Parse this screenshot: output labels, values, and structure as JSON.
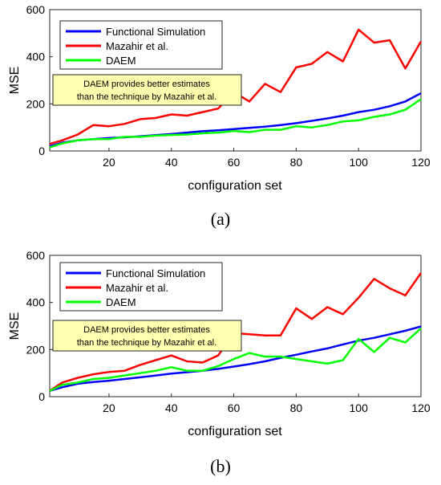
{
  "figure": {
    "panels": [
      "(a)",
      "(b)"
    ]
  },
  "chart_data": [
    {
      "type": "line",
      "caption": "(a)",
      "xlabel": "configuration set",
      "ylabel": "MSE",
      "xlim": [
        1,
        120
      ],
      "ylim": [
        0,
        600
      ],
      "xticks": [
        20,
        40,
        60,
        80,
        100,
        120
      ],
      "yticks": [
        0,
        200,
        400,
        600
      ],
      "grid": false,
      "legend_position": "top-left",
      "annotation": [
        "DAEM provides better estimates",
        "than the technique by Mazahir et al."
      ],
      "x": [
        1,
        5,
        10,
        15,
        20,
        25,
        30,
        35,
        40,
        45,
        50,
        55,
        60,
        65,
        70,
        75,
        80,
        85,
        90,
        95,
        100,
        105,
        110,
        115,
        120
      ],
      "series": [
        {
          "name": "Functional Simulation",
          "color": "#0000ff",
          "values": [
            20,
            35,
            45,
            50,
            55,
            58,
            62,
            67,
            72,
            78,
            84,
            88,
            93,
            98,
            103,
            110,
            118,
            128,
            138,
            150,
            165,
            175,
            190,
            210,
            245
          ]
        },
        {
          "name": "Mazahir et al.",
          "color": "#ff0000",
          "values": [
            30,
            45,
            70,
            110,
            105,
            115,
            135,
            140,
            155,
            150,
            165,
            180,
            250,
            210,
            285,
            250,
            355,
            370,
            420,
            380,
            515,
            460,
            470,
            350,
            465
          ]
        },
        {
          "name": "DAEM",
          "color": "#00ff00",
          "values": [
            15,
            32,
            45,
            50,
            50,
            60,
            60,
            65,
            68,
            70,
            75,
            78,
            85,
            80,
            90,
            90,
            105,
            100,
            110,
            125,
            130,
            145,
            155,
            175,
            220
          ]
        }
      ]
    },
    {
      "type": "line",
      "caption": "(b)",
      "xlabel": "configuration set",
      "ylabel": "MSE",
      "xlim": [
        1,
        120
      ],
      "ylim": [
        0,
        600
      ],
      "xticks": [
        20,
        40,
        60,
        80,
        100,
        120
      ],
      "yticks": [
        0,
        200,
        400,
        600
      ],
      "grid": false,
      "legend_position": "top-left",
      "annotation": [
        "DAEM provides better estimates",
        "than the technique by Mazahir et al."
      ],
      "x": [
        1,
        5,
        10,
        15,
        20,
        25,
        30,
        35,
        40,
        45,
        50,
        55,
        60,
        65,
        70,
        75,
        80,
        85,
        90,
        95,
        100,
        105,
        110,
        115,
        120
      ],
      "series": [
        {
          "name": "Functional Simulation",
          "color": "#0000ff",
          "values": [
            25,
            40,
            55,
            62,
            68,
            75,
            82,
            90,
            98,
            104,
            110,
            118,
            128,
            138,
            150,
            165,
            178,
            192,
            205,
            222,
            238,
            250,
            265,
            280,
            298
          ]
        },
        {
          "name": "Mazahir et al.",
          "color": "#ff0000",
          "values": [
            25,
            60,
            80,
            95,
            105,
            110,
            135,
            155,
            175,
            150,
            145,
            175,
            270,
            265,
            260,
            260,
            375,
            330,
            380,
            350,
            420,
            500,
            460,
            430,
            525
          ]
        },
        {
          "name": "DAEM",
          "color": "#00ff00",
          "values": [
            25,
            50,
            60,
            75,
            80,
            90,
            100,
            110,
            125,
            110,
            110,
            130,
            160,
            185,
            170,
            170,
            160,
            150,
            140,
            155,
            245,
            190,
            250,
            230,
            290
          ]
        }
      ]
    }
  ]
}
